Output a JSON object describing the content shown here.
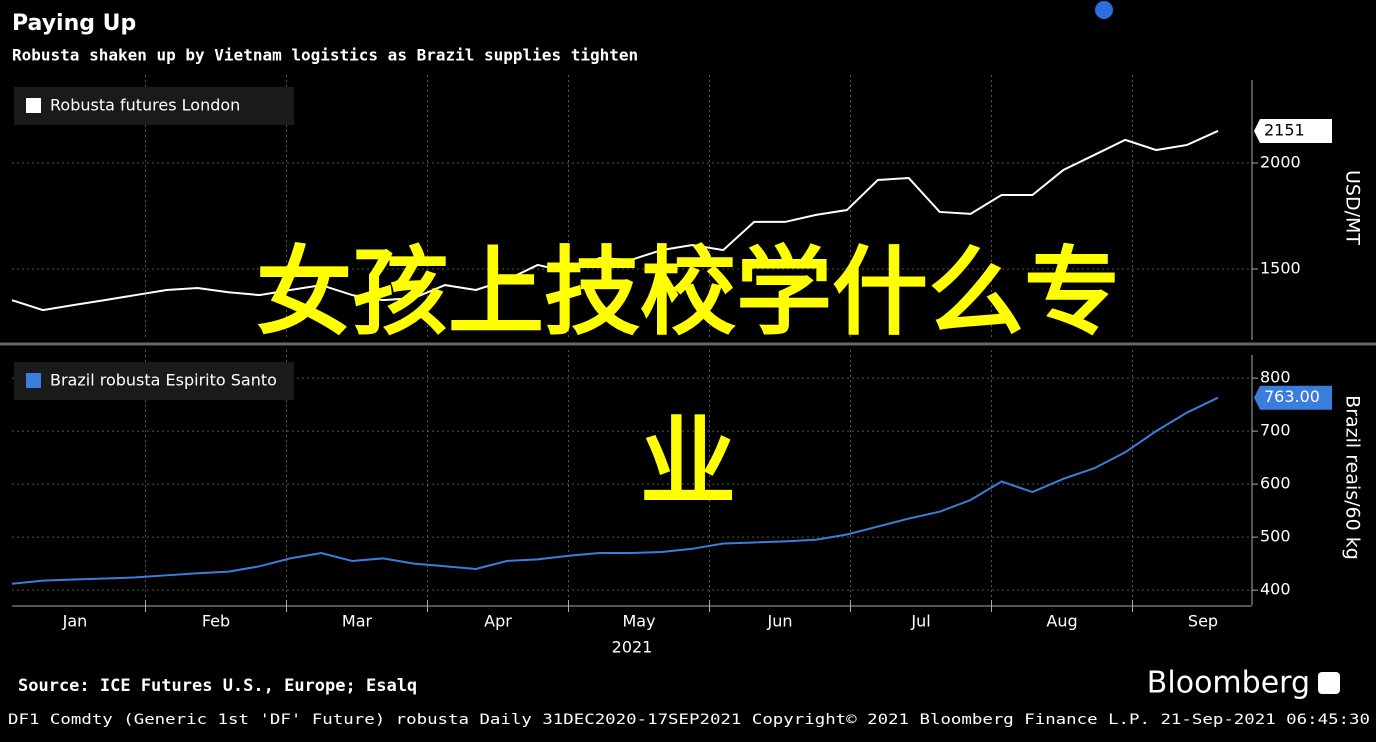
{
  "chart_data": [
    {
      "type": "line",
      "title": "Paying Up",
      "subtitle": "Robusta shaken up by Vietnam logistics as Brazil supplies tighten",
      "y_axis_label": "USD/MT",
      "ylim": [
        1165,
        2415
      ],
      "yticks": [
        1500,
        2000
      ],
      "grid": true,
      "legend": "upper left",
      "series": [
        {
          "name": "Robusta futures London",
          "color": "#ffffff",
          "values": [
            1353,
            1306,
            1330,
            1353,
            1377,
            1401,
            1410,
            1390,
            1377,
            1401,
            1424,
            1377,
            1353,
            1363,
            1424,
            1401,
            1448,
            1519,
            1486,
            1552,
            1542,
            1589,
            1613,
            1589,
            1722,
            1722,
            1755,
            1778,
            1920,
            1929,
            1769,
            1760,
            1849,
            1849,
            1967,
            2038,
            2109,
            2061,
            2085,
            2151
          ]
        }
      ]
    },
    {
      "type": "line",
      "y_axis_label": "Brazil reais/60 kg",
      "ylim": [
        372,
        853
      ],
      "yticks": [
        400,
        500,
        600,
        700,
        800
      ],
      "grid": true,
      "legend": "upper left",
      "x_axis_labels": [
        "Jan",
        "Feb",
        "Mar",
        "Apr",
        "May",
        "Jun",
        "Jul",
        "Aug",
        "Sep"
      ],
      "x_year": "2021",
      "series": [
        {
          "name": "Brazil robusta Espirito Santo",
          "color": "#3b7ddd",
          "values": [
            412,
            418,
            420,
            422,
            424,
            428,
            432,
            435,
            445,
            460,
            470,
            455,
            460,
            450,
            445,
            440,
            455,
            458,
            465,
            470,
            470,
            472,
            478,
            488,
            490,
            492,
            495,
            505,
            520,
            535,
            548,
            570,
            605,
            585,
            610,
            630,
            660,
            700,
            735,
            763
          ],
          "last_value_label": "763.00"
        }
      ]
    }
  ],
  "source": "Source: ICE Futures U.S., Europe; Esalq",
  "brand": "Bloomberg",
  "footer": "DF1 Comdty (Generic 1st 'DF' Future) robusta  Daily 31DEC2020-17SEP2021  Copyright© 2021 Bloomberg Finance L.P.  21-Sep-2021 06:45:30",
  "overlay": [
    "女孩上技校学什么专",
    "业"
  ]
}
